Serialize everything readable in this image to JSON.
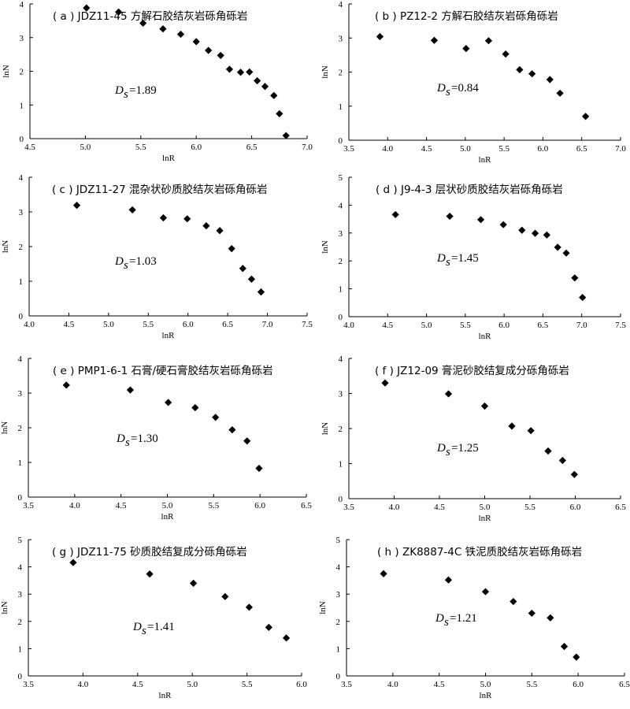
{
  "chart_data": [
    {
      "type": "scatter",
      "panel": "(a)",
      "title": "( a ) JDZ11-45 方解石胶结灰岩砾角砾岩",
      "xlabel": "lnR",
      "ylabel": "lnN",
      "ds_label": "=1.89",
      "xlim": [
        4.5,
        7.0
      ],
      "ylim": [
        0,
        4
      ],
      "xticks": [
        "4.5",
        "5.0",
        "5.5",
        "6.0",
        "6.5",
        "7.0"
      ],
      "yticks": [
        "0",
        "1",
        "2",
        "3",
        "4"
      ],
      "points": [
        [
          5.01,
          3.88
        ],
        [
          5.3,
          3.76
        ],
        [
          5.52,
          3.43
        ],
        [
          5.7,
          3.26
        ],
        [
          5.86,
          3.1
        ],
        [
          6.0,
          2.88
        ],
        [
          6.11,
          2.62
        ],
        [
          6.22,
          2.47
        ],
        [
          6.3,
          2.06
        ],
        [
          6.4,
          1.97
        ],
        [
          6.48,
          1.98
        ],
        [
          6.55,
          1.72
        ],
        [
          6.62,
          1.55
        ],
        [
          6.7,
          1.28
        ],
        [
          6.75,
          0.74
        ],
        [
          6.81,
          0.09
        ]
      ]
    },
    {
      "type": "scatter",
      "panel": "(b)",
      "title": "( b ) PZ12-2  方解石胶结灰岩砾角砾岩",
      "xlabel": "lnR",
      "ylabel": "lnN",
      "ds_label": "=0.84",
      "xlim": [
        3.5,
        7.0
      ],
      "ylim": [
        0,
        4
      ],
      "xticks": [
        "3.5",
        "4.0",
        "4.5",
        "5.0",
        "5.5",
        "6.0",
        "6.5",
        "7.0"
      ],
      "yticks": [
        "0",
        "1",
        "2",
        "3",
        "4"
      ],
      "points": [
        [
          3.9,
          3.04
        ],
        [
          4.6,
          2.93
        ],
        [
          5.01,
          2.69
        ],
        [
          5.3,
          2.92
        ],
        [
          5.52,
          2.53
        ],
        [
          5.7,
          2.07
        ],
        [
          5.86,
          1.95
        ],
        [
          6.09,
          1.78
        ],
        [
          6.22,
          1.38
        ],
        [
          6.55,
          0.7
        ]
      ]
    },
    {
      "type": "scatter",
      "panel": "(c)",
      "title": "( c ) JDZ11-27 混杂状砂质胶结灰岩砾角砾岩",
      "xlabel": "lnR",
      "ylabel": "lnN",
      "ds_label": "=1.03",
      "xlim": [
        4.0,
        7.5
      ],
      "ylim": [
        0,
        4
      ],
      "xticks": [
        "4.0",
        "4.5",
        "5.0",
        "5.5",
        "6.0",
        "6.5",
        "7.0",
        "7.5"
      ],
      "yticks": [
        "0",
        "1",
        "2",
        "3",
        "4"
      ],
      "points": [
        [
          4.6,
          3.19
        ],
        [
          5.3,
          3.06
        ],
        [
          5.69,
          2.83
        ],
        [
          5.99,
          2.8
        ],
        [
          6.23,
          2.6
        ],
        [
          6.4,
          2.46
        ],
        [
          6.55,
          1.94
        ],
        [
          6.69,
          1.37
        ],
        [
          6.8,
          1.06
        ],
        [
          6.92,
          0.69
        ]
      ]
    },
    {
      "type": "scatter",
      "panel": "(d)",
      "title": "( d ) J9-4-3 层状砂质胶结灰岩砾角砾岩",
      "xlabel": "lnR",
      "ylabel": "lnN",
      "ds_label": "=1.45",
      "xlim": [
        4.0,
        7.5
      ],
      "ylim": [
        0,
        5
      ],
      "xticks": [
        "4.0",
        "4.5",
        "5.0",
        "5.5",
        "6.0",
        "6.5",
        "7.0",
        "7.5"
      ],
      "yticks": [
        "0",
        "1",
        "2",
        "3",
        "4",
        "5"
      ],
      "points": [
        [
          4.6,
          3.66
        ],
        [
          5.3,
          3.6
        ],
        [
          5.7,
          3.48
        ],
        [
          5.99,
          3.3
        ],
        [
          6.23,
          3.1
        ],
        [
          6.4,
          2.99
        ],
        [
          6.55,
          2.93
        ],
        [
          6.69,
          2.49
        ],
        [
          6.8,
          2.28
        ],
        [
          6.91,
          1.39
        ],
        [
          7.01,
          0.69
        ]
      ]
    },
    {
      "type": "scatter",
      "panel": "(e)",
      "title": "( e ) PMP1-6-1  石膏/硬石膏胶结灰岩砾角砾岩",
      "xlabel": "lnR",
      "ylabel": "lnN",
      "ds_label": "=1.30",
      "xlim": [
        3.5,
        6.5
      ],
      "ylim": [
        0,
        4
      ],
      "xticks": [
        "3.5",
        "4.0",
        "4.5",
        "5.0",
        "5.5",
        "6.0",
        "6.5"
      ],
      "yticks": [
        "0",
        "1",
        "2",
        "3",
        "4"
      ],
      "points": [
        [
          3.91,
          3.23
        ],
        [
          4.6,
          3.09
        ],
        [
          5.01,
          2.73
        ],
        [
          5.3,
          2.58
        ],
        [
          5.52,
          2.3
        ],
        [
          5.7,
          1.94
        ],
        [
          5.86,
          1.62
        ],
        [
          5.99,
          0.83
        ]
      ]
    },
    {
      "type": "scatter",
      "panel": "(f)",
      "title": "( f ) JZ12-09  膏泥砂胶结复成分砾角砾岩",
      "xlabel": "lnR",
      "ylabel": "lnN",
      "ds_label": "=1.25",
      "xlim": [
        3.5,
        6.5
      ],
      "ylim": [
        0,
        4
      ],
      "xticks": [
        "3.5",
        "4.0",
        "4.5",
        "5.0",
        "5.5",
        "6.0",
        "6.5"
      ],
      "yticks": [
        "0",
        "1",
        "2",
        "3",
        "4"
      ],
      "points": [
        [
          3.9,
          3.3
        ],
        [
          4.6,
          2.99
        ],
        [
          5.0,
          2.64
        ],
        [
          5.3,
          2.07
        ],
        [
          5.51,
          1.94
        ],
        [
          5.7,
          1.36
        ],
        [
          5.86,
          1.09
        ],
        [
          5.99,
          0.69
        ]
      ]
    },
    {
      "type": "scatter",
      "panel": "(g)",
      "title": "( g ) JDZ11-75  砂质胶结复成分砾角砾岩",
      "xlabel": "lnR",
      "ylabel": "lnN",
      "ds_label": "=1.41",
      "xlim": [
        3.5,
        6.0
      ],
      "ylim": [
        0,
        5
      ],
      "xticks": [
        "3.5",
        "4.0",
        "4.5",
        "5.0",
        "5.5",
        "6.0"
      ],
      "yticks": [
        "0",
        "1",
        "2",
        "3",
        "4",
        "5"
      ],
      "points": [
        [
          3.91,
          4.16
        ],
        [
          4.61,
          3.74
        ],
        [
          5.01,
          3.4
        ],
        [
          5.3,
          2.91
        ],
        [
          5.52,
          2.52
        ],
        [
          5.7,
          1.78
        ],
        [
          5.86,
          1.39
        ]
      ]
    },
    {
      "type": "scatter",
      "panel": "(h)",
      "title": "( h ) ZK8887-4C  铁泥质胶结灰岩砾角砾岩",
      "xlabel": "lnR",
      "ylabel": "lnN",
      "ds_label": "=1.21",
      "xlim": [
        3.5,
        6.5
      ],
      "ylim": [
        0,
        5
      ],
      "xticks": [
        "3.5",
        "4.0",
        "4.5",
        "5.0",
        "5.5",
        "6.0",
        "6.5"
      ],
      "yticks": [
        "0",
        "1",
        "2",
        "3",
        "4",
        "5"
      ],
      "points": [
        [
          3.9,
          3.75
        ],
        [
          4.6,
          3.52
        ],
        [
          5.0,
          3.09
        ],
        [
          5.3,
          2.73
        ],
        [
          5.5,
          2.3
        ],
        [
          5.7,
          2.13
        ],
        [
          5.85,
          1.08
        ],
        [
          5.98,
          0.69
        ]
      ]
    }
  ]
}
